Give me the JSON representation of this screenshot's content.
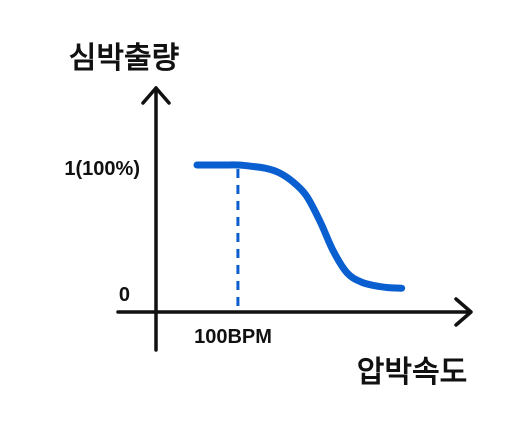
{
  "chart_data": {
    "type": "line",
    "ylabel": "심박출량",
    "xlabel": "압박속도",
    "y_ticks": [
      {
        "label": "1(100%)",
        "value": 1.0
      },
      {
        "label": "0",
        "value": 0.0
      }
    ],
    "x_ticks": [
      {
        "label": "100BPM",
        "value": 100
      }
    ],
    "grid": false,
    "legend": "none",
    "series": [
      {
        "color": "#0a5fd0",
        "points": [
          [
            70,
            1.0
          ],
          [
            80,
            1.0
          ],
          [
            90,
            1.0
          ],
          [
            100,
            1.0
          ],
          [
            110,
            0.99
          ],
          [
            120,
            0.975
          ],
          [
            130,
            0.94
          ],
          [
            140,
            0.87
          ],
          [
            150,
            0.76
          ],
          [
            160,
            0.56
          ],
          [
            170,
            0.32
          ],
          [
            180,
            0.15
          ],
          [
            190,
            0.08
          ],
          [
            200,
            0.05
          ],
          [
            210,
            0.035
          ],
          [
            220,
            0.03
          ]
        ]
      }
    ],
    "reference_lines": [
      {
        "type": "vertical",
        "x": 100,
        "style": "dashed",
        "color": "#0a5fd0"
      }
    ],
    "xlim": [
      40,
      270
    ],
    "ylim": [
      0,
      1.0
    ],
    "colors": {
      "axis": "#111111",
      "curve": "#0a5fd0"
    }
  }
}
